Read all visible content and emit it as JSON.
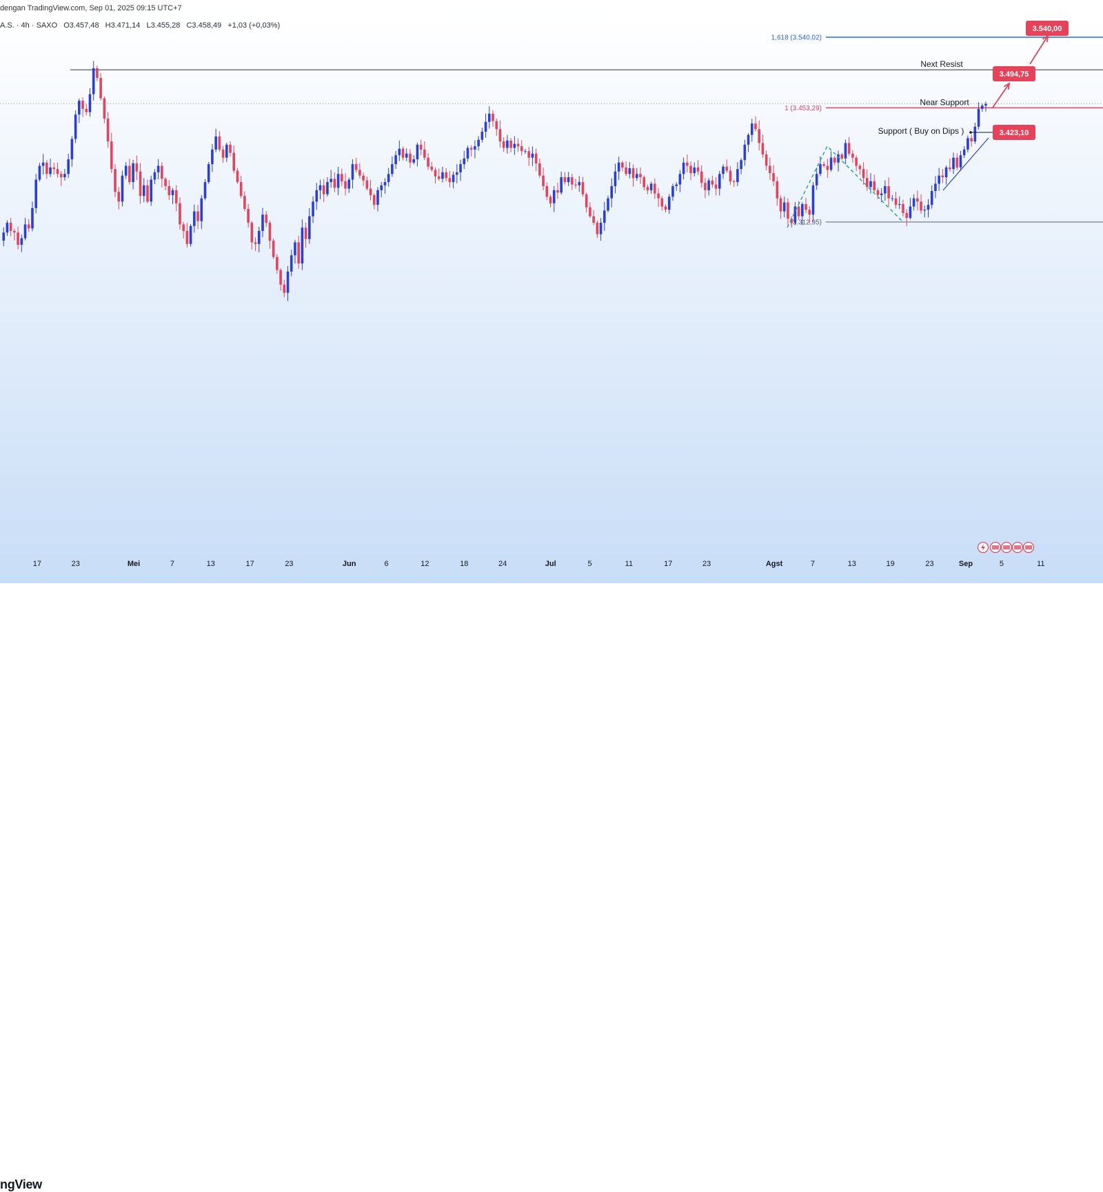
{
  "header": {
    "credit": "dengan TradingView.com, Sep 01, 2025 09:15 UTC+7",
    "symbol": "A.S. · 4h · SAXO",
    "open": "O3.457,48",
    "high": "H3.471,14",
    "low": "L3.455,28",
    "close": "C3.458,49",
    "change": "+1,03 (+0,03%)"
  },
  "footer": {
    "brand": "ngView"
  },
  "colors": {
    "bull": "#2a3fd6",
    "bear": "#e5435a",
    "bg_top": "#ffffff",
    "bg_bottom": "#c8ddf7",
    "resist_line": "#2a2e39",
    "fib_blue": "#2962ff",
    "fib_red": "#e5435a",
    "tag_red": "#e5435a",
    "zigzag": "#26a69a"
  },
  "chart_data": {
    "type": "candlestick",
    "timeframe": "4h",
    "x_labels": [
      "17",
      "23",
      "Mei",
      "7",
      "13",
      "17",
      "23",
      "Jun",
      "6",
      "12",
      "18",
      "24",
      "Jul",
      "5",
      "11",
      "17",
      "23",
      "Agst",
      "7",
      "13",
      "19",
      "23",
      "Sep",
      "5",
      "11"
    ],
    "y_range": [
      3100,
      3560
    ],
    "levels": [
      {
        "label": "1,618 (3.540,02)",
        "value": 3540.02,
        "kind": "fib"
      },
      {
        "label": "1 (3.453,29)",
        "value": 3453.29,
        "kind": "fib-red"
      },
      {
        "label": "(3.312,95)",
        "value": 3312.95,
        "kind": "fib-base"
      }
    ],
    "annotations": [
      {
        "text": "Next Resist",
        "value": 3500.0
      },
      {
        "text": "Near Support",
        "value": 3453.29
      },
      {
        "text": "Support ( Buy on Dips )",
        "value": 3423.1
      }
    ],
    "tags": [
      "3.540,00",
      "3.494,75",
      "3.423,10"
    ],
    "swing_high": 3500.0,
    "prices": [
      3290,
      3300,
      3312,
      3302,
      3300,
      3285,
      3293,
      3310,
      3305,
      3330,
      3365,
      3382,
      3386,
      3372,
      3380,
      3378,
      3372,
      3368,
      3372,
      3390,
      3415,
      3445,
      3462,
      3452,
      3448,
      3470,
      3502,
      3490,
      3465,
      3440,
      3412,
      3378,
      3350,
      3338,
      3370,
      3382,
      3362,
      3385,
      3375,
      3345,
      3358,
      3338,
      3365,
      3374,
      3382,
      3366,
      3357,
      3346,
      3352,
      3336,
      3310,
      3302,
      3286,
      3308,
      3326,
      3314,
      3342,
      3362,
      3384,
      3402,
      3418,
      3402,
      3392,
      3408,
      3398,
      3376,
      3362,
      3345,
      3329,
      3312,
      3288,
      3286,
      3302,
      3322,
      3312,
      3290,
      3270,
      3254,
      3236,
      3226,
      3252,
      3272,
      3288,
      3262,
      3306,
      3292,
      3320,
      3338,
      3352,
      3358,
      3347,
      3362,
      3366,
      3355,
      3372,
      3363,
      3354,
      3365,
      3384,
      3377,
      3370,
      3364,
      3354,
      3346,
      3334,
      3352,
      3358,
      3362,
      3372,
      3384,
      3395,
      3403,
      3392,
      3397,
      3386,
      3390,
      3408,
      3402,
      3392,
      3381,
      3377,
      3369,
      3366,
      3374,
      3367,
      3362,
      3371,
      3374,
      3384,
      3391,
      3404,
      3402,
      3406,
      3414,
      3424,
      3436,
      3446,
      3437,
      3427,
      3412,
      3404,
      3413,
      3404,
      3409,
      3406,
      3400,
      3400,
      3392,
      3397,
      3385,
      3370,
      3357,
      3344,
      3336,
      3352,
      3349,
      3368,
      3362,
      3368,
      3359,
      3358,
      3362,
      3347,
      3331,
      3320,
      3312,
      3298,
      3312,
      3327,
      3342,
      3357,
      3375,
      3386,
      3380,
      3372,
      3379,
      3367,
      3372,
      3368,
      3356,
      3352,
      3360,
      3348,
      3342,
      3332,
      3328,
      3344,
      3357,
      3359,
      3372,
      3386,
      3382,
      3373,
      3380,
      3375,
      3361,
      3352,
      3364,
      3359,
      3354,
      3372,
      3381,
      3376,
      3363,
      3362,
      3378,
      3389,
      3408,
      3420,
      3434,
      3427,
      3410,
      3396,
      3382,
      3373,
      3363,
      3342,
      3326,
      3337,
      3317,
      3312,
      3332,
      3320,
      3335,
      3328,
      3322,
      3358,
      3372,
      3384,
      3382,
      3377,
      3392,
      3386,
      3396,
      3391,
      3410,
      3397,
      3392,
      3382,
      3378,
      3367,
      3356,
      3363,
      3352,
      3346,
      3348,
      3357,
      3342,
      3342,
      3334,
      3335,
      3324,
      3318,
      3332,
      3342,
      3338,
      3327,
      3328,
      3334,
      3351,
      3360,
      3370,
      3368,
      3380,
      3378,
      3392,
      3380,
      3395,
      3402,
      3416,
      3412,
      3430,
      3452,
      3456,
      3458
    ]
  }
}
